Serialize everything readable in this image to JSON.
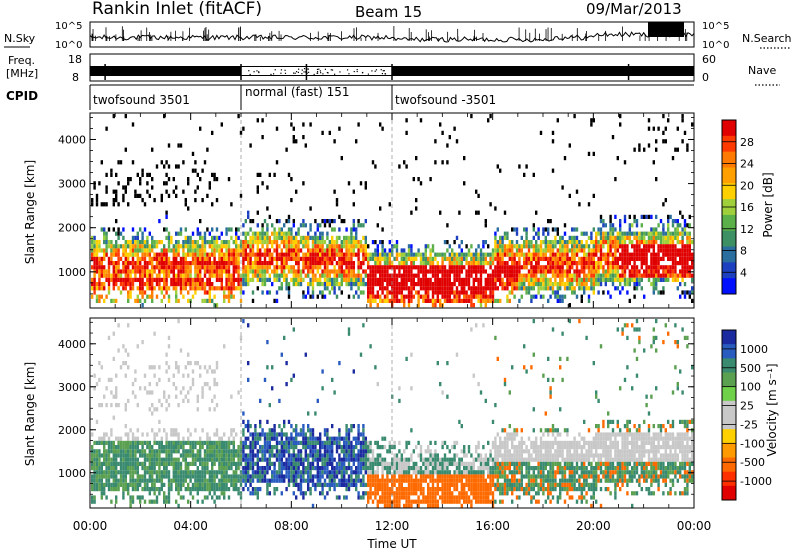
{
  "header": {
    "station": "Rankin Inlet (fitACF)",
    "beam": "Beam 15",
    "date": "09/Mar/2013"
  },
  "noise_panel": {
    "left_label": "N.Sky",
    "right_label": "N.Search",
    "y_ticks": [
      "10^5",
      "10^0"
    ]
  },
  "freq_panel": {
    "left_label_1": "Freq.",
    "left_label_2": "[MHz]",
    "right_label": "Nave",
    "y_ticks_left": [
      "18",
      "8"
    ],
    "y_ticks_right": [
      "60",
      "0"
    ]
  },
  "cpid_panel": {
    "label": "CPID",
    "segments": [
      {
        "label": "twofsound 3501",
        "start": 0,
        "end": 6
      },
      {
        "label": "normal (fast) 151",
        "start": 6,
        "end": 12
      },
      {
        "label": "twofsound -3501",
        "start": 12,
        "end": 24
      }
    ]
  },
  "power_panel": {
    "ylabel": "Slant Range [km]",
    "cbar_label": "Power [dB]",
    "cbar_ticks": [
      "28",
      "24",
      "20",
      "16",
      "12",
      "8",
      "4"
    ],
    "cbar_colors": [
      "#e00000",
      "#ff3a00",
      "#ff7a00",
      "#ffa000",
      "#ffd000",
      "#9fd03c",
      "#5bb04a",
      "#3d9064",
      "#2a6ea0",
      "#1c40c0",
      "#0010ff"
    ]
  },
  "velocity_panel": {
    "ylabel": "Slant Range [km]",
    "cbar_label": "Velocity [m s⁻¹]",
    "cbar_ticks": [
      "1000",
      "500",
      "100",
      "25",
      "-25",
      "-100",
      "-500",
      "-1000"
    ],
    "cbar_colors": [
      "#1c2aa0",
      "#2a5cc0",
      "#3a8a70",
      "#5aa050",
      "#6fd04a",
      "#c8c8c8",
      "#c8c8c8",
      "#ffd000",
      "#ff9a00",
      "#ff6a00",
      "#ff3000",
      "#e00000"
    ]
  },
  "x_axis": {
    "label": "Time UT",
    "ticks": [
      "00:00",
      "04:00",
      "08:00",
      "12:00",
      "16:00",
      "20:00",
      "00:00"
    ]
  },
  "y_axis_ticks": [
    "4000",
    "3000",
    "2000",
    "1000"
  ],
  "chart_data": [
    {
      "type": "heatmap",
      "title": "Rankin Inlet (fitACF)",
      "subtitle": "Beam 15",
      "xlabel": "Time UT",
      "ylabel": "Slant Range [km]",
      "colorbar_label": "Power [dB]",
      "x_range_hours": [
        0,
        24
      ],
      "y_range_km": [
        180,
        4600
      ],
      "colorbar_ticks_db": [
        4,
        8,
        12,
        16,
        20,
        24,
        28
      ],
      "main_echo_band_km": [
        500,
        1800
      ],
      "strong_echo_periods": [
        {
          "start": "00:00",
          "end": "06:00",
          "range_km": [
            400,
            1600
          ],
          "power_db": 28
        },
        {
          "start": "11:00",
          "end": "18:00",
          "range_km": [
            500,
            1200
          ],
          "power_db": 28
        },
        {
          "start": "21:00",
          "end": "24:00",
          "range_km": [
            800,
            1800
          ],
          "power_db": 26
        }
      ]
    },
    {
      "type": "heatmap",
      "xlabel": "Time UT",
      "ylabel": "Slant Range [km]",
      "colorbar_label": "Velocity [m s⁻¹]",
      "x_range_hours": [
        0,
        24
      ],
      "y_range_km": [
        180,
        4600
      ],
      "colorbar_ticks_ms": [
        1000,
        500,
        100,
        25,
        -25,
        -100,
        -500,
        -1000
      ],
      "features": [
        {
          "start": "00:00",
          "end": "06:00",
          "range_km": [
            500,
            1600
          ],
          "velocity_ms": 150
        },
        {
          "start": "06:00",
          "end": "11:00",
          "range_km": [
            600,
            2200
          ],
          "velocity_ms": 600
        },
        {
          "start": "11:00",
          "end": "16:00",
          "range_km": [
            500,
            900
          ],
          "velocity_ms": -300
        },
        {
          "start": "16:00",
          "end": "24:00",
          "range_km": [
            1300,
            2000
          ],
          "velocity_ms": 0
        }
      ]
    }
  ]
}
